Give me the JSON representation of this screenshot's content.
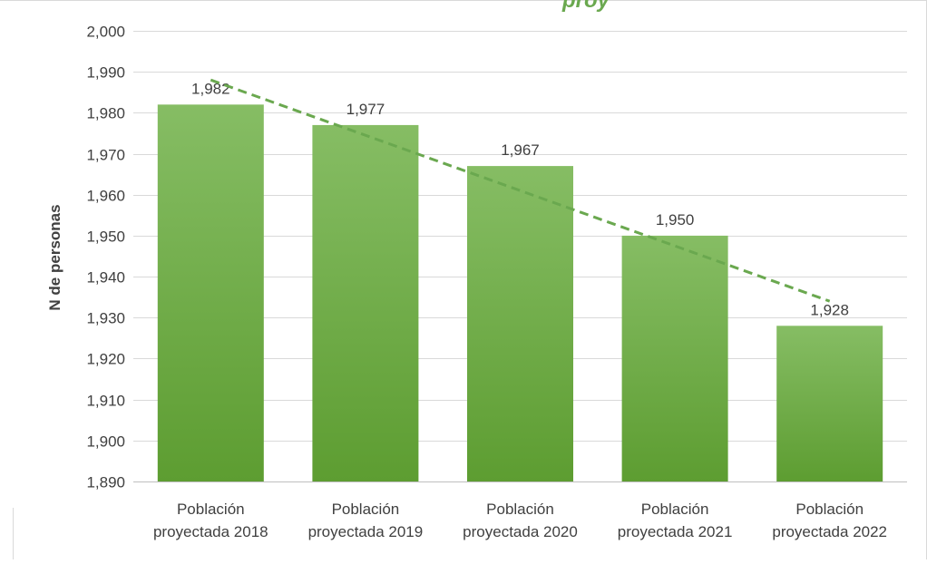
{
  "chart_data": {
    "type": "bar",
    "title": "",
    "title_fragment": "proy",
    "xlabel": "",
    "ylabel": "N de personas",
    "categories": [
      [
        "Población",
        "proyectada 2018"
      ],
      [
        "Población",
        "proyectada 2019"
      ],
      [
        "Población",
        "proyectada 2020"
      ],
      [
        "Población",
        "proyectada 2021"
      ],
      [
        "Población",
        "proyectada 2022"
      ]
    ],
    "values": [
      1982,
      1977,
      1967,
      1950,
      1928
    ],
    "data_labels": [
      "1,982",
      "1,977",
      "1,967",
      "1,950",
      "1,928"
    ],
    "ylim": [
      1890,
      2000
    ],
    "y_ticks": [
      1890,
      1900,
      1910,
      1920,
      1930,
      1940,
      1950,
      1960,
      1970,
      1980,
      1990,
      2000
    ],
    "y_tick_labels": [
      "1,890",
      "1,900",
      "1,910",
      "1,920",
      "1,930",
      "1,940",
      "1,950",
      "1,960",
      "1,970",
      "1,980",
      "1,990",
      "2,000"
    ],
    "trendline": {
      "type": "linear",
      "style": "dashed",
      "start_value": 1988,
      "end_value": 1934
    },
    "grid": true,
    "legend": "none",
    "colors": {
      "bar_top": "#86bd64",
      "bar_bottom": "#5d9d31",
      "trendline": "#6aa84f",
      "grid": "#d9d9d9",
      "text": "#404040",
      "title": "#6aa84f"
    }
  }
}
